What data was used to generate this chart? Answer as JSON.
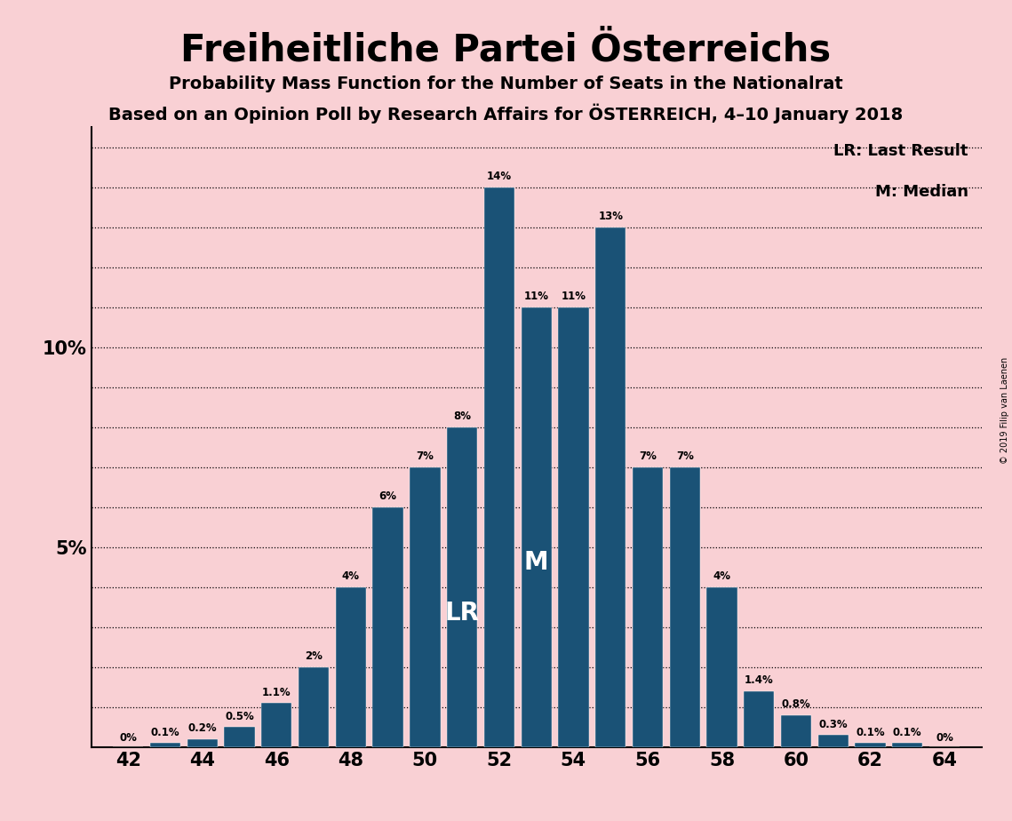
{
  "title": "Freiheitliche Partei Österreichs",
  "subtitle1": "Probability Mass Function for the Number of Seats in the Nationalrat",
  "subtitle2": "Based on an Opinion Poll by Research Affairs for ÖSTERREICH, 4–10 January 2018",
  "copyright": "© 2019 Filip van Laenen",
  "legend_lr": "LR: Last Result",
  "legend_m": "M: Median",
  "background_color": "#f9d0d4",
  "bar_color": "#1a5276",
  "seats": [
    42,
    43,
    44,
    45,
    46,
    47,
    48,
    49,
    50,
    51,
    52,
    53,
    54,
    55,
    56,
    57,
    58,
    59,
    60,
    61,
    62,
    63,
    64
  ],
  "probabilities": [
    0.0,
    0.1,
    0.2,
    0.5,
    1.1,
    2.0,
    4.0,
    6.0,
    7.0,
    8.0,
    14.0,
    11.0,
    11.0,
    13.0,
    7.0,
    7.0,
    4.0,
    1.4,
    0.8,
    0.3,
    0.1,
    0.1,
    0.0
  ],
  "labels": [
    "0%",
    "0.1%",
    "0.2%",
    "0.5%",
    "1.1%",
    "2%",
    "4%",
    "6%",
    "7%",
    "8%",
    "14%",
    "11%",
    "11%",
    "13%",
    "7%",
    "7%",
    "4%",
    "1.4%",
    "0.8%",
    "0.3%",
    "0.1%",
    "0.1%",
    "0%"
  ],
  "lr_seat": 51,
  "median_seat": 53,
  "xlim": [
    41.0,
    65.0
  ],
  "ylim": [
    0,
    15.5
  ],
  "xticks": [
    42,
    44,
    46,
    48,
    50,
    52,
    54,
    56,
    58,
    60,
    62,
    64
  ],
  "ytick_lines": [
    1,
    2,
    3,
    4,
    5,
    6,
    7,
    8,
    9,
    10,
    11,
    12,
    13,
    14,
    15
  ],
  "ylabel_ticks": [
    5,
    10
  ],
  "ylabel_labels": [
    "5%",
    "10%"
  ]
}
